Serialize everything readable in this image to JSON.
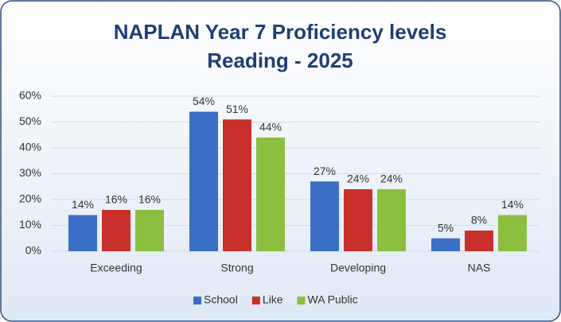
{
  "chart_data": {
    "type": "bar",
    "title": "NAPLAN Year 7 Proficiency levels",
    "subtitle": "Reading - 2025",
    "categories": [
      "Exceeding",
      "Strong",
      "Developing",
      "NAS"
    ],
    "series": [
      {
        "name": "School",
        "color": "#3b6fc5",
        "values": [
          14,
          54,
          27,
          5
        ],
        "value_labels": [
          "14%",
          "54%",
          "27%",
          "5%"
        ]
      },
      {
        "name": "Like",
        "color": "#c9302c",
        "values": [
          16,
          51,
          24,
          8
        ],
        "value_labels": [
          "16%",
          "51%",
          "24%",
          "8%"
        ]
      },
      {
        "name": "WA Public",
        "color": "#8cbf3f",
        "values": [
          16,
          44,
          24,
          14
        ],
        "value_labels": [
          "16%",
          "44%",
          "24%",
          "14%"
        ]
      }
    ],
    "ylim": [
      0,
      60
    ],
    "yticks": [
      {
        "value": 0,
        "label": "0%"
      },
      {
        "value": 10,
        "label": "10%"
      },
      {
        "value": 20,
        "label": "20%"
      },
      {
        "value": 30,
        "label": "30%"
      },
      {
        "value": 40,
        "label": "40%"
      },
      {
        "value": 50,
        "label": "50%"
      },
      {
        "value": 60,
        "label": "60%"
      }
    ],
    "grid": true,
    "legend": "bottom"
  }
}
